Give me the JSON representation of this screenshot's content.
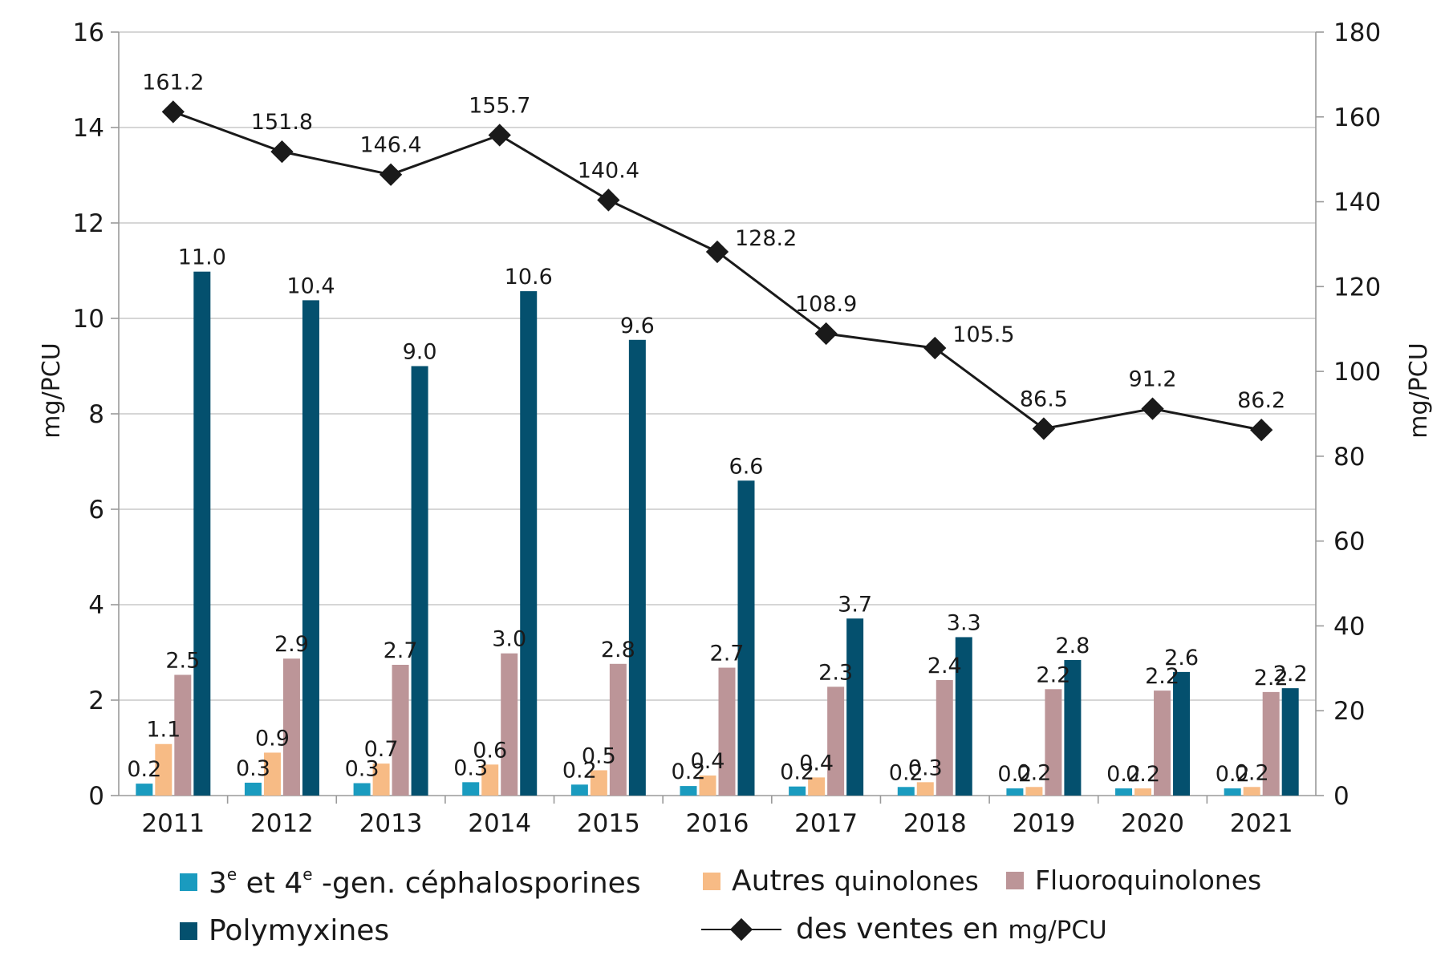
{
  "chart_data": {
    "type": "bar+line",
    "categories": [
      "2011",
      "2012",
      "2013",
      "2014",
      "2015",
      "2016",
      "2017",
      "2018",
      "2019",
      "2020",
      "2021"
    ],
    "left_axis": {
      "label": "mg/PCU",
      "ylim": [
        0,
        16
      ],
      "ticks": [
        "0",
        "2",
        "4",
        "6",
        "8",
        "10",
        "12",
        "14",
        "16"
      ]
    },
    "right_axis": {
      "label": "mg/PCU",
      "ylim": [
        0,
        180
      ],
      "ticks": [
        "0",
        "20",
        "40",
        "60",
        "80",
        "100",
        "120",
        "140",
        "160",
        "180"
      ]
    },
    "grid": "horizontal",
    "legend_position": "bottom",
    "series": [
      {
        "name": "3e et 4e -gen. céphalosporines",
        "type": "bar",
        "axis": "left",
        "color": "#1a9bbf",
        "values": [
          0.25,
          0.27,
          0.26,
          0.28,
          0.23,
          0.2,
          0.19,
          0.18,
          0.15,
          0.15,
          0.15
        ],
        "labels": [
          "0.2",
          "0.3",
          "0.3",
          "0.3",
          "0.2",
          "0.2",
          "0.2",
          "0.2",
          "0.2",
          "0.2",
          "0.2"
        ]
      },
      {
        "name": "Autres quinolones",
        "type": "bar",
        "axis": "left",
        "color": "#f7bb85",
        "values": [
          1.08,
          0.9,
          0.67,
          0.65,
          0.53,
          0.42,
          0.38,
          0.28,
          0.18,
          0.15,
          0.18
        ],
        "labels": [
          "1.1",
          "0.9",
          "0.7",
          "0.6",
          "0.5",
          "0.4",
          "0.4",
          "0.3",
          "0.2",
          "0.2",
          "0.2"
        ]
      },
      {
        "name": "Fluoroquinolones",
        "type": "bar",
        "axis": "left",
        "color": "#bc9598",
        "values": [
          2.53,
          2.87,
          2.74,
          2.98,
          2.76,
          2.68,
          2.28,
          2.42,
          2.23,
          2.2,
          2.17
        ],
        "labels": [
          "2.5",
          "2.9",
          "2.7",
          "3.0",
          "2.8",
          "2.7",
          "2.3",
          "2.4",
          "2.2",
          "2.2",
          "2.2"
        ]
      },
      {
        "name": "Polymyxines",
        "type": "bar",
        "axis": "left",
        "color": "#04506e",
        "values": [
          10.98,
          10.38,
          9.0,
          10.57,
          9.55,
          6.6,
          3.71,
          3.32,
          2.84,
          2.59,
          2.25
        ],
        "labels": [
          "11.0",
          "10.4",
          "9.0",
          "10.6",
          "9.6",
          "6.6",
          "3.7",
          "3.3",
          "2.8",
          "2.6",
          "2.2"
        ]
      },
      {
        "name": "des ventes en mg/PCU",
        "type": "line",
        "axis": "right",
        "color": "#1a1a1a",
        "values": [
          161.2,
          151.8,
          146.4,
          155.7,
          140.4,
          128.2,
          108.9,
          105.5,
          86.5,
          91.2,
          86.2
        ],
        "labels": [
          "161.2",
          "151.8",
          "146.4",
          "155.7",
          "140.4",
          "128.2",
          "108.9",
          "105.5",
          "86.5",
          "91.2",
          "86.2"
        ]
      }
    ]
  },
  "legend": {
    "ceph_pre": "3",
    "ceph_sup1": "e",
    "ceph_mid": " et 4",
    "ceph_sup2": "e",
    "ceph_post": " -gen. céphalosporines",
    "autres_a": "Autres ",
    "autres_b": "quinolones",
    "fluoro": "Fluoroquinolones",
    "poly": "Polymyxines",
    "ventes_a": "des ventes en ",
    "ventes_b": "mg/PCU"
  }
}
